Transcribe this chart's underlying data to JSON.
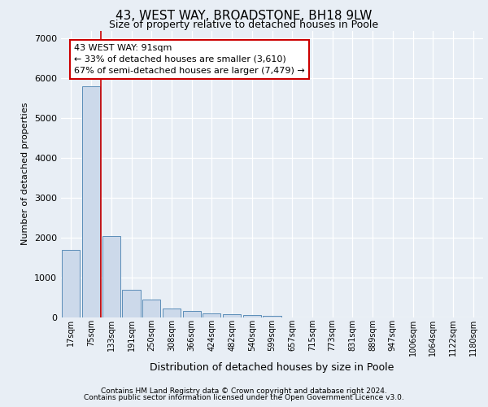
{
  "title": "43, WEST WAY, BROADSTONE, BH18 9LW",
  "subtitle": "Size of property relative to detached houses in Poole",
  "xlabel": "Distribution of detached houses by size in Poole",
  "ylabel": "Number of detached properties",
  "categories": [
    "17sqm",
    "75sqm",
    "133sqm",
    "191sqm",
    "250sqm",
    "308sqm",
    "366sqm",
    "424sqm",
    "482sqm",
    "540sqm",
    "599sqm",
    "657sqm",
    "715sqm",
    "773sqm",
    "831sqm",
    "889sqm",
    "947sqm",
    "1006sqm",
    "1064sqm",
    "1122sqm",
    "1180sqm"
  ],
  "values": [
    1700,
    5800,
    2050,
    700,
    450,
    220,
    155,
    105,
    80,
    55,
    35,
    10,
    5,
    2,
    1,
    0,
    0,
    0,
    0,
    0,
    0
  ],
  "bar_color": "#ccd9ea",
  "bar_edge_color": "#5b8db8",
  "annotation_text": "43 WEST WAY: 91sqm\n← 33% of detached houses are smaller (3,610)\n67% of semi-detached houses are larger (7,479) →",
  "annotation_box_color": "white",
  "annotation_box_edge": "#cc0000",
  "ylim": [
    0,
    7200
  ],
  "yticks": [
    0,
    1000,
    2000,
    3000,
    4000,
    5000,
    6000,
    7000
  ],
  "footer_line1": "Contains HM Land Registry data © Crown copyright and database right 2024.",
  "footer_line2": "Contains public sector information licensed under the Open Government Licence v3.0.",
  "bg_color": "#e8eef5",
  "plot_bg_color": "#e8eef5",
  "grid_color": "#ffffff",
  "red_line_color": "#cc0000",
  "red_line_x": 1.5,
  "title_fontsize": 11,
  "subtitle_fontsize": 9,
  "ylabel_fontsize": 8,
  "xlabel_fontsize": 9,
  "tick_fontsize": 8,
  "xtick_fontsize": 7,
  "annotation_fontsize": 8,
  "footer_fontsize": 6.5
}
